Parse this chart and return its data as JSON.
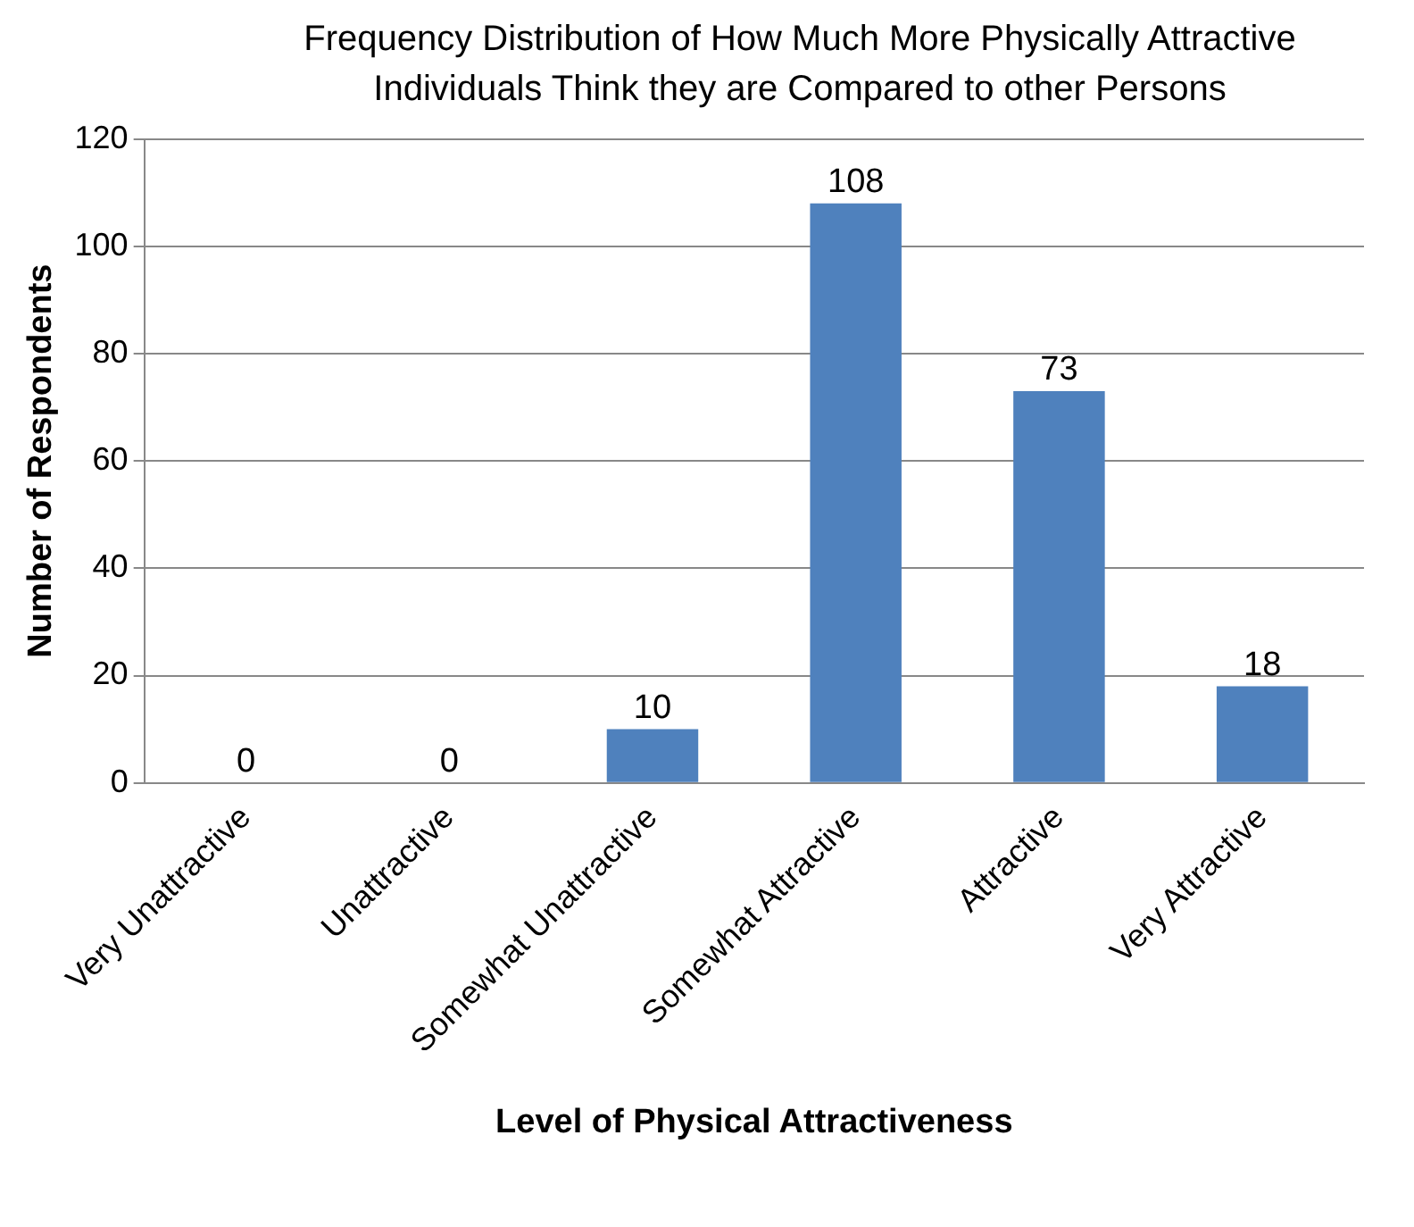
{
  "chart_data": {
    "type": "bar",
    "title": "Frequency Distribution of How Much More Physically Attractive Individuals Think they are Compared to other Persons",
    "xlabel": "Level of Physical Attractiveness",
    "ylabel": "Number of Respondents",
    "categories": [
      "Very Unattractive",
      "Unattractive",
      "Somewhat Unattractive",
      "Somewhat Attractive",
      "Attractive",
      "Very Attractive"
    ],
    "values": [
      0,
      0,
      10,
      108,
      73,
      18
    ],
    "color": "#4f81bd",
    "ylim": [
      0,
      120
    ],
    "yticks": [
      0,
      20,
      40,
      60,
      80,
      100,
      120
    ],
    "grid": "y",
    "data_labels": true,
    "legend": false
  }
}
